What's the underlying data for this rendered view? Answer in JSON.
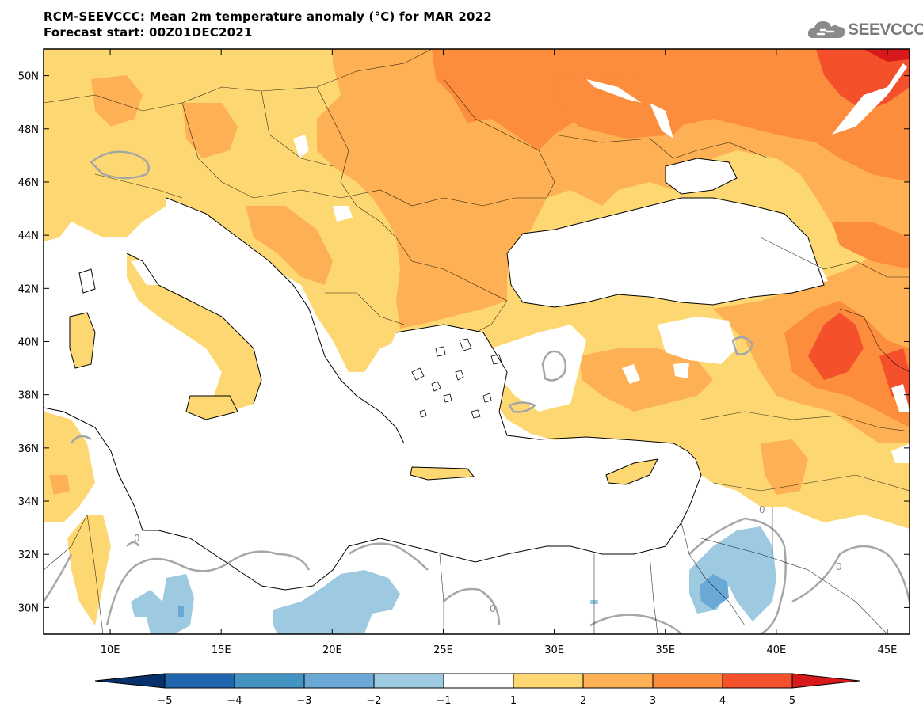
{
  "title": {
    "line1": "RCM-SEEVCCC: Mean 2m temperature anomaly (°C) for MAR 2022",
    "line2": "Forecast start: 00Z01DEC2021"
  },
  "logo": {
    "text": "SEEVCCC",
    "icon": "cloud-logo-icon"
  },
  "map": {
    "lon_range": [
      7,
      46
    ],
    "lat_range": [
      29,
      51
    ],
    "lat_ticks": [
      "50N",
      "48N",
      "46N",
      "44N",
      "42N",
      "40N",
      "38N",
      "36N",
      "34N",
      "32N",
      "30N"
    ],
    "lon_ticks": [
      "10E",
      "15E",
      "20E",
      "25E",
      "30E",
      "35E",
      "40E",
      "45E"
    ],
    "contour_label": "0"
  },
  "colorbar": {
    "ticks": [
      "−5",
      "−4",
      "−3",
      "−2",
      "−1",
      "1",
      "2",
      "3",
      "4",
      "5"
    ],
    "colors": [
      "#08306b",
      "#2166ac",
      "#4393c3",
      "#6aa8d6",
      "#9ecae1",
      "#ffffff",
      "#fdd872",
      "#fdb154",
      "#fc8d3c",
      "#f4502c",
      "#d7191c"
    ]
  },
  "colors": {
    "c1": "#fdd872",
    "c2": "#fdb154",
    "c3": "#fc8d3c",
    "c4": "#f4502c",
    "c5": "#d7191c",
    "b1": "#9ecae1",
    "b2": "#6aa8d6",
    "contour": "#a6a6a6"
  }
}
